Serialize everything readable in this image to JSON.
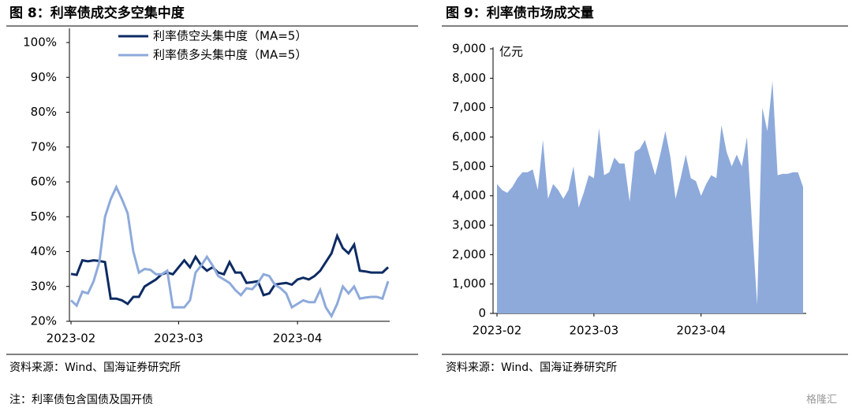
{
  "chart_data": [
    {
      "type": "line",
      "title": "图 8：利率债成交多空集中度",
      "source": "资料来源：Wind、国海证券研究所",
      "categories": [
        "2023-02",
        null,
        null,
        null,
        null,
        null,
        null,
        null,
        null,
        null,
        null,
        null,
        null,
        null,
        null,
        null,
        null,
        null,
        null,
        "2023-03",
        null,
        null,
        null,
        null,
        null,
        null,
        null,
        null,
        null,
        null,
        null,
        null,
        null,
        null,
        null,
        null,
        null,
        null,
        null,
        null,
        "2023-04",
        null,
        null,
        null,
        null,
        null,
        null,
        null,
        null,
        null,
        null,
        null,
        null,
        null,
        null,
        null,
        null
      ],
      "series": [
        {
          "name": "利率债空头集中度（MA=5）",
          "color": "#0d2b63",
          "values": [
            33.6,
            33.3,
            37.5,
            37.2,
            37.5,
            37.3,
            37,
            26.5,
            26.5,
            26,
            25,
            27,
            27,
            30,
            31,
            32,
            33.5,
            34,
            33.5,
            35.5,
            37.5,
            35.5,
            38.5,
            36,
            34.5,
            35.5,
            34,
            33.5,
            37,
            34,
            34,
            31,
            31.2,
            31.5,
            27.5,
            28,
            30.5,
            30.8,
            31,
            30.5,
            32,
            32.5,
            32,
            33,
            34.5,
            37,
            39.5,
            44.5,
            41,
            39.5,
            42,
            34.5,
            34.3,
            34,
            34,
            34,
            35.5
          ]
        },
        {
          "name": "利率债多头集中度（MA=5）",
          "color": "#8eaadb",
          "values": [
            26,
            24.5,
            28.5,
            28,
            31.5,
            37,
            50,
            55,
            58.5,
            55,
            51,
            40,
            34,
            35,
            34.8,
            33.5,
            33.5,
            34.5,
            24,
            24,
            24,
            26,
            34,
            36,
            38.5,
            36,
            33,
            32,
            31,
            29,
            27.5,
            29.5,
            29.2,
            31,
            33.5,
            33,
            30.5,
            29.5,
            28,
            24,
            25,
            26,
            25.5,
            25.5,
            29,
            24,
            21.5,
            25,
            30,
            28,
            30,
            26.5,
            26.8,
            27,
            27,
            26.5,
            31.5
          ]
        }
      ],
      "ylim": [
        20,
        100
      ],
      "yticks": [
        {
          "value": 20,
          "label": "20%"
        },
        {
          "value": 30,
          "label": "30%"
        },
        {
          "value": 40,
          "label": "40%"
        },
        {
          "value": 50,
          "label": "50%"
        },
        {
          "value": 60,
          "label": "60%"
        },
        {
          "value": 70,
          "label": "70%"
        },
        {
          "value": 80,
          "label": "80%"
        },
        {
          "value": 90,
          "label": "90%"
        },
        {
          "value": 100,
          "label": "100%"
        }
      ],
      "legend": "top"
    },
    {
      "type": "area",
      "title": "图 9：利率债市场成交量",
      "source": "资料来源：Wind、国海证券研究所",
      "y_unit": "亿元",
      "categories": [
        "2023-02",
        null,
        null,
        null,
        null,
        null,
        null,
        null,
        null,
        null,
        null,
        null,
        null,
        null,
        null,
        null,
        null,
        null,
        null,
        "2023-03",
        null,
        null,
        null,
        null,
        null,
        null,
        null,
        null,
        null,
        null,
        null,
        null,
        null,
        null,
        null,
        null,
        null,
        null,
        null,
        null,
        "2023-04",
        null,
        null,
        null,
        null,
        null,
        null,
        null,
        null,
        null,
        null,
        null,
        null,
        null,
        null,
        null,
        null,
        null,
        null,
        null,
        null
      ],
      "color": "#8eaadb",
      "values": [
        4400,
        4200,
        4100,
        4300,
        4600,
        4800,
        4800,
        4900,
        4200,
        5900,
        3900,
        4400,
        4200,
        3900,
        4200,
        5000,
        3600,
        4100,
        4700,
        4600,
        6300,
        4700,
        4800,
        5300,
        5100,
        5100,
        3800,
        5500,
        5600,
        5900,
        5300,
        4700,
        5400,
        6200,
        5300,
        3900,
        4600,
        5400,
        4600,
        4500,
        4000,
        4400,
        4700,
        4600,
        6400,
        5500,
        5000,
        5400,
        5000,
        6000,
        3000,
        300,
        7000,
        6200,
        7900,
        4700,
        4750,
        4750,
        4800,
        4800,
        4300
      ],
      "ylim": [
        0,
        9000
      ],
      "yticks": [
        0,
        {
          "value": 1000,
          "label": "1,000"
        },
        {
          "value": 2000,
          "label": "2,000"
        },
        {
          "value": 3000,
          "label": "3,000"
        },
        {
          "value": 4000,
          "label": "4,000"
        },
        {
          "value": 5000,
          "label": "5,000"
        },
        {
          "value": 6000,
          "label": "6,000"
        },
        {
          "value": 7000,
          "label": "7,000"
        },
        {
          "value": 8000,
          "label": "8,000"
        },
        {
          "value": 9000,
          "label": "9,000"
        }
      ]
    }
  ],
  "footnote": "注：利率债包含国债及国开债",
  "watermark": "格隆汇"
}
